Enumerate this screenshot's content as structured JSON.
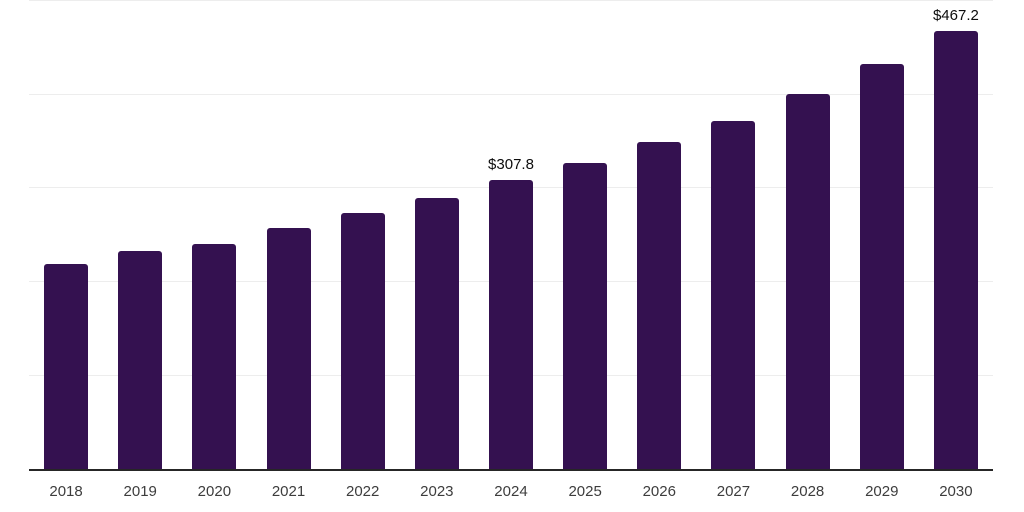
{
  "chart_data": {
    "type": "bar",
    "title": "",
    "categories": [
      "2018",
      "2019",
      "2020",
      "2021",
      "2022",
      "2023",
      "2024",
      "2025",
      "2026",
      "2027",
      "2028",
      "2029",
      "2030"
    ],
    "values": [
      219.2,
      232.1,
      240.4,
      257.4,
      273.2,
      289.4,
      307.8,
      326.5,
      349.0,
      371.5,
      400.5,
      432.0,
      467.2
    ],
    "value_prefix": "$",
    "annotations": [
      {
        "category": "2024",
        "text": "$307.8"
      },
      {
        "category": "2030",
        "text": "$467.2"
      }
    ],
    "xlabel": "",
    "ylabel": "",
    "ylim": [
      0,
      500
    ],
    "gridline_step": 100,
    "grid": "horizontal",
    "y_tick_labels_visible": false,
    "legend_position": "none",
    "colors": {
      "bar": "#341150",
      "background": "#ffffff",
      "gridline": "#ededed",
      "axis_line": "#262626",
      "tick_label": "#3d3d3d",
      "value_label": "#0d0d0d"
    }
  }
}
